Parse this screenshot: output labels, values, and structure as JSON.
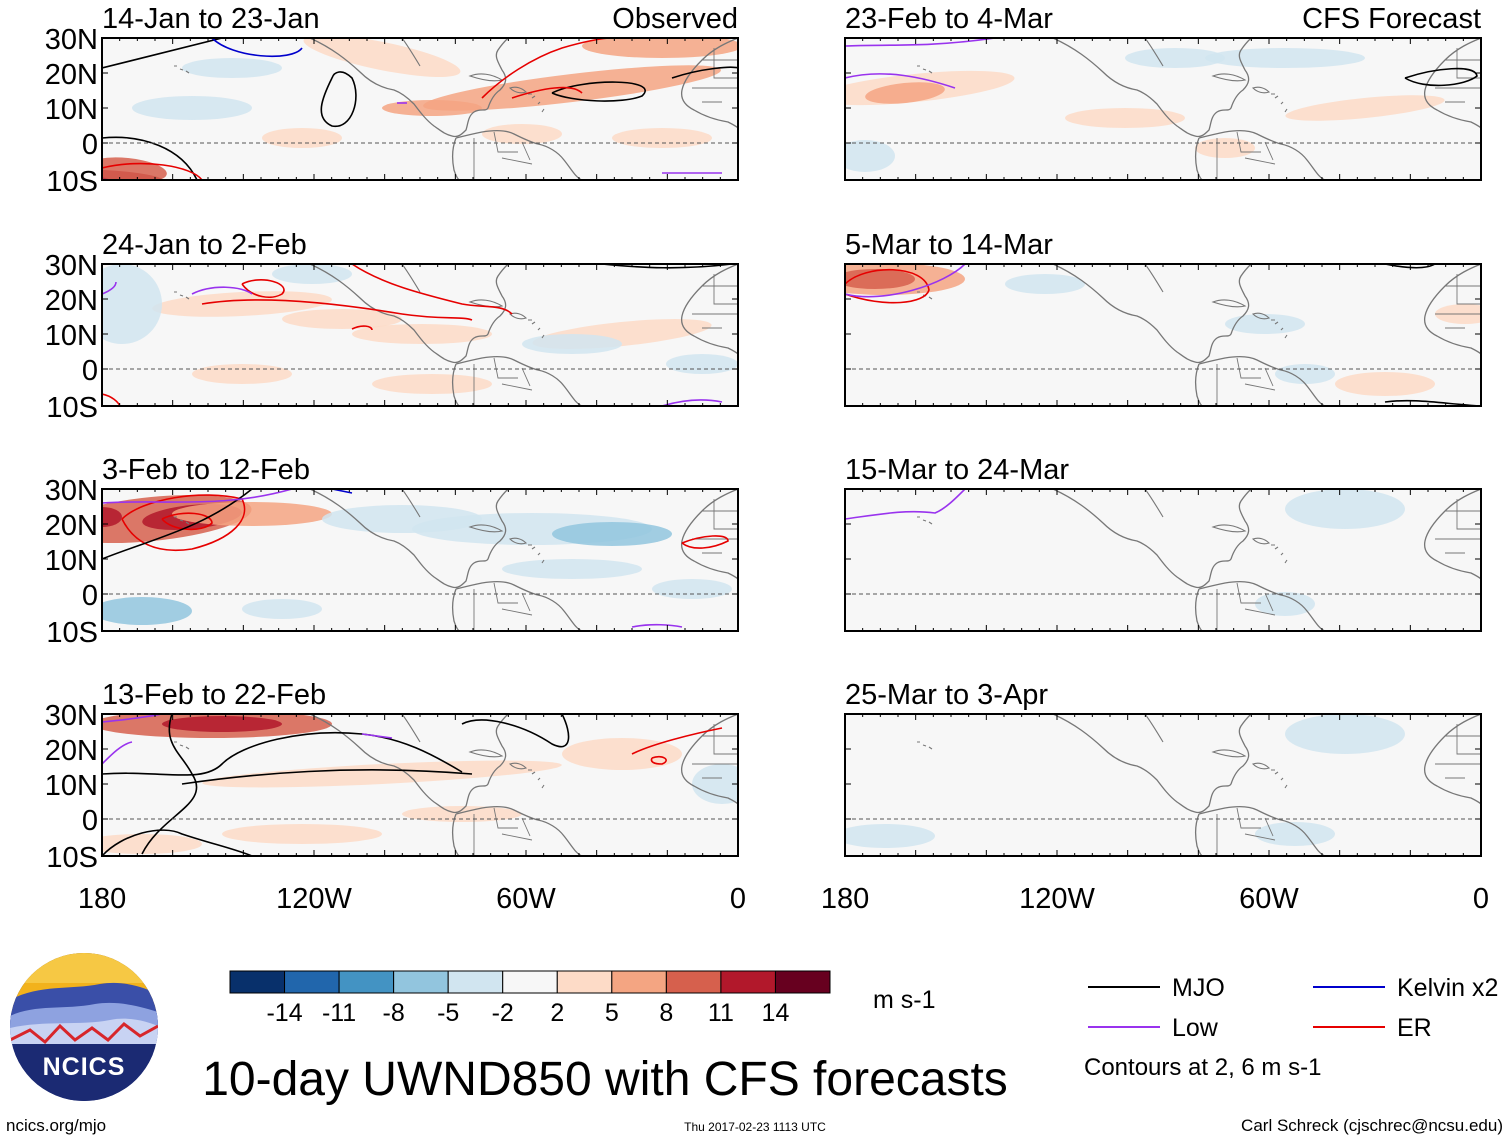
{
  "figure": {
    "title": "10-day UWND850 with CFS forecasts",
    "url": "ncics.org/mjo",
    "timestamp": "Thu 2017-02-23 1113 UTC",
    "credit": "Carl Schreck (cjschrec@ncsu.edu)",
    "logo_text": "NCICS"
  },
  "panel_tags": {
    "observed": "Observed",
    "forecast": "CFS Forecast"
  },
  "left_panels": [
    {
      "title": "14-Jan to 23-Jan"
    },
    {
      "title": "24-Jan to 2-Feb"
    },
    {
      "title": "3-Feb to 12-Feb"
    },
    {
      "title": "13-Feb to 22-Feb"
    }
  ],
  "right_panels": [
    {
      "title": "23-Feb to 4-Mar"
    },
    {
      "title": "5-Mar to 14-Mar"
    },
    {
      "title": "15-Mar to 24-Mar"
    },
    {
      "title": "25-Mar to 3-Apr"
    }
  ],
  "lat_ticks": [
    "30N",
    "20N",
    "10N",
    "0",
    "10S"
  ],
  "lon_ticks": [
    "180",
    "120W",
    "60W",
    "0"
  ],
  "colorbar": {
    "units": "m s-1",
    "labels": [
      "-14",
      "-11",
      "-8",
      "-5",
      "-2",
      "2",
      "5",
      "8",
      "11",
      "14"
    ],
    "colors": [
      "#08306b",
      "#2166ac",
      "#4393c3",
      "#92c5de",
      "#d1e5f0",
      "#f7f7f7",
      "#fddbc7",
      "#f4a582",
      "#d6604d",
      "#b2182b",
      "#67001f"
    ]
  },
  "legend": {
    "items": [
      {
        "label": "MJO",
        "color": "#000000"
      },
      {
        "label": "Kelvin x2",
        "color": "#0000cc"
      },
      {
        "label": "Low",
        "color": "#9933ee"
      },
      {
        "label": "ER",
        "color": "#e60000"
      }
    ],
    "note": "Contours at 2, 6 m s-1"
  }
}
